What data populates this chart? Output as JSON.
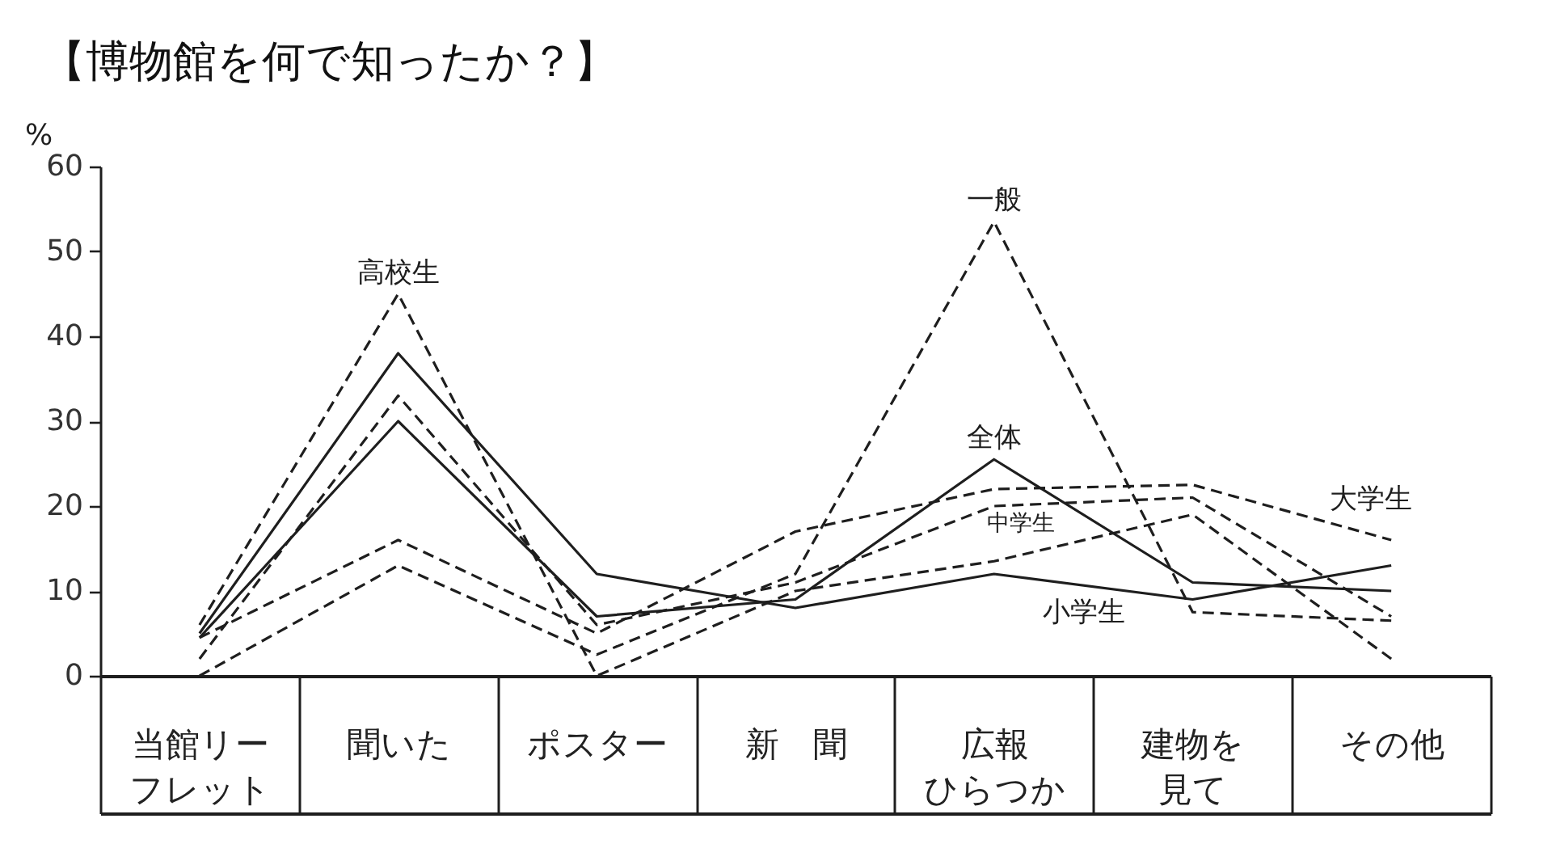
{
  "chart_data": {
    "type": "line",
    "title": "【博物館を何で知ったか？】",
    "ylabel": "%",
    "categories": [
      "当館リーフレット",
      "聞いた",
      "ポスター",
      "新　聞",
      "広報ひらつか",
      "建物を見て",
      "その他"
    ],
    "series": [
      {
        "name": "高校生",
        "color": "#1e1e1e",
        "line_style": "dashed",
        "values": [
          6,
          45,
          0,
          10,
          13.5,
          19,
          2
        ]
      },
      {
        "name": "中学生",
        "color": "#1e1e1e",
        "line_style": "dashed",
        "values": [
          2,
          33,
          6,
          11,
          20,
          21,
          7
        ]
      },
      {
        "name": "小学生",
        "color": "#1e1e1e",
        "line_style": "solid",
        "values": [
          5,
          38,
          12,
          8,
          12,
          9,
          13
        ]
      },
      {
        "name": "一般",
        "color": "#1e1e1e",
        "line_style": "dashed",
        "values": [
          0,
          13,
          2.5,
          12,
          53.5,
          7.5,
          6.5
        ]
      },
      {
        "name": "全体",
        "color": "#1e1e1e",
        "line_style": "solid",
        "values": [
          4.5,
          30,
          7,
          9,
          25.5,
          11,
          10
        ]
      },
      {
        "name": "大学生",
        "color": "#1e1e1e",
        "line_style": "dashed",
        "values": [
          4.5,
          16,
          5,
          17,
          22,
          22.5,
          16
        ]
      }
    ],
    "ylim": [
      0,
      60
    ],
    "yticks": [
      0,
      10,
      20,
      30,
      40,
      50,
      60
    ]
  }
}
